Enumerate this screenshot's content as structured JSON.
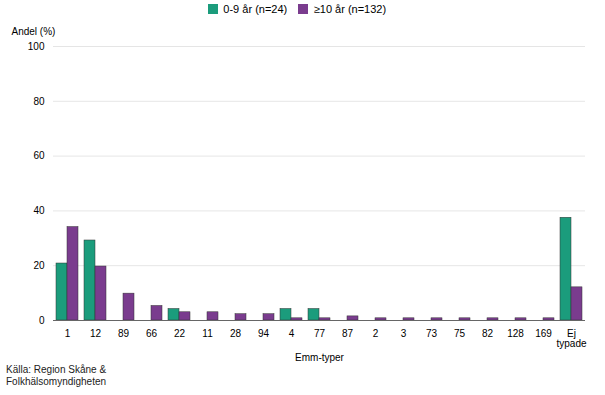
{
  "chart_data": {
    "type": "bar",
    "ylabel": "Andel (%)",
    "xlabel": "Emm-typer",
    "source": "Källa: Region Skåne & Folkhälsomyndigheten",
    "categories": [
      "1",
      "12",
      "89",
      "66",
      "22",
      "11",
      "28",
      "94",
      "4",
      "77",
      "87",
      "2",
      "3",
      "73",
      "75",
      "82",
      "128",
      "169",
      "Ej typade"
    ],
    "series": [
      {
        "name": "0-9 år (n=24)",
        "color": "#1b9c7c",
        "values": [
          20.8,
          29.2,
          0,
          0,
          4.2,
          0,
          0,
          0,
          4.2,
          4.2,
          0,
          0,
          0,
          0,
          0,
          0,
          0,
          0,
          37.5
        ]
      },
      {
        "name": "≥10 år (n=132)",
        "color": "#7a3c8e",
        "values": [
          34.1,
          19.7,
          9.8,
          5.3,
          3.0,
          3.0,
          2.3,
          2.3,
          0.8,
          0.8,
          1.5,
          0.8,
          0.8,
          0.8,
          0.8,
          0.8,
          0.8,
          0.8,
          12.1
        ]
      }
    ],
    "ylim": [
      0,
      100
    ],
    "yticks": [
      0,
      20,
      40,
      60,
      80,
      100
    ],
    "grid": true,
    "legend": "top"
  }
}
